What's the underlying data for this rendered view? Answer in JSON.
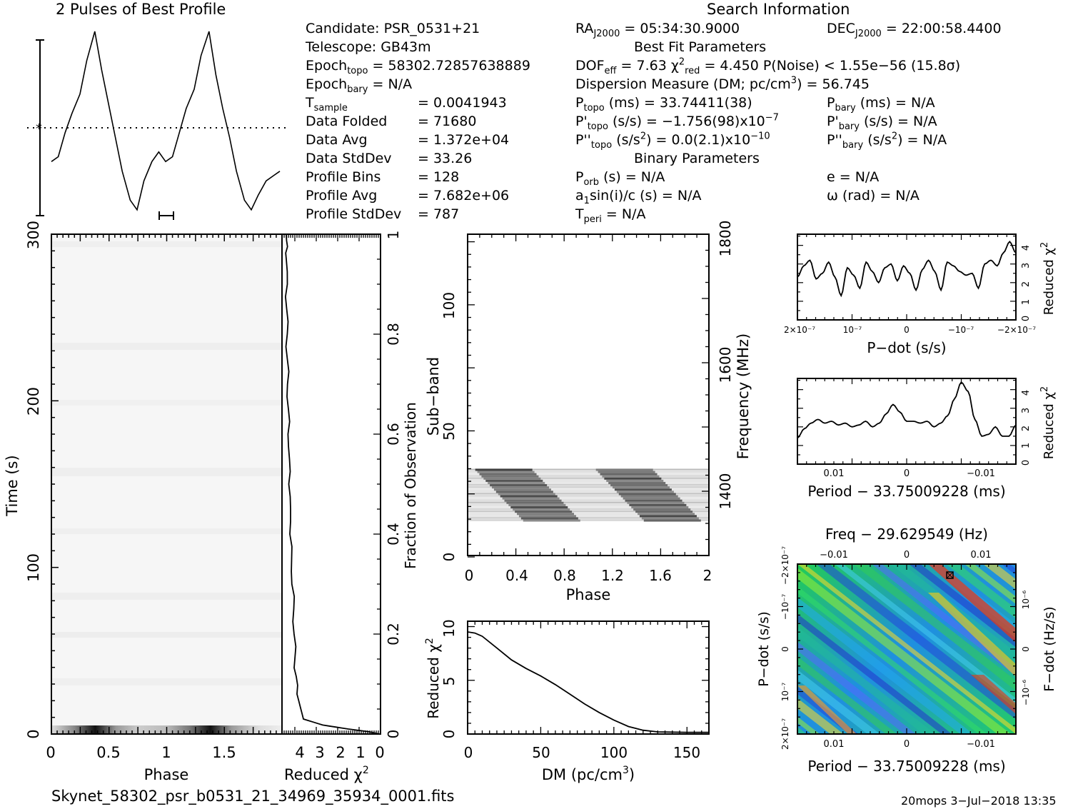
{
  "colors": {
    "ink": "#000000",
    "background": "#ffffff",
    "grey_light": "#f5f5f5",
    "grey_dark": "#222222"
  },
  "header": {
    "profile_title": "2 Pulses of Best Profile",
    "search_title": "Search Information",
    "best_fit_title": "Best Fit Parameters",
    "binary_title": "Binary Parameters"
  },
  "info": {
    "candidate": "Candidate:  PSR_0531+21",
    "telescope": "Telescope:  GB43m",
    "epoch_topo_label": "Epoch",
    "epoch_topo_sub": "topo",
    "epoch_topo_value": " = 58302.72857638889",
    "epoch_bary_label": "Epoch",
    "epoch_bary_sub": "bary",
    "epoch_bary_value": " = N/A",
    "tsample_label": "T",
    "tsample_sub": "sample",
    "tsample_value": "=   0.0041943",
    "data_folded_label": "Data Folded",
    "data_folded_value": "=   71680",
    "data_avg_label": "Data Avg",
    "data_avg_value": "=   1.372e+04",
    "data_std_label": "Data StdDev",
    "data_std_value": "=   33.26",
    "profile_bins_label": "Profile Bins",
    "profile_bins_value": "=   128",
    "profile_avg_label": "Profile Avg",
    "profile_avg_value": "=   7.682e+06",
    "profile_std_label": "Profile StdDev",
    "profile_std_value": "=   787"
  },
  "search": {
    "ra_label": "RA",
    "ra_sub": "J2000",
    "ra_value": " = 05:34:30.9000",
    "dec_label": "DEC",
    "dec_sub": "J2000",
    "dec_value": " = 22:00:58.4400",
    "dof_label": "DOF",
    "dof_sub": "eff",
    "dof_value": " = 7.63  ",
    "chi_sym": "χ",
    "chi_sup": "2",
    "chi_sub": "red",
    "chi_value": " = 4.450   P(Noise) < 1.55e−56   (15.8σ)",
    "dm_text": "Dispersion Measure (DM; pc/cm",
    "dm_sup": "3",
    "dm_value": ") = 56.745",
    "ptopo_label": "P",
    "ptopo_sub": "topo",
    "ptopo_value": " (ms)  =   33.74411(38)",
    "pbary_label": "P",
    "pbary_sub": "bary",
    "pbary_value": " (ms) = N/A",
    "pdtopo_label": "P'",
    "pdtopo_sub": "topo",
    "pdtopo_value": " (s/s) = −1.756(98)x10",
    "pdtopo_exp": "−7",
    "pdbary_label": "P'",
    "pdbary_sub": "bary",
    "pdbary_value": " (s/s) = N/A",
    "pddtopo_label": "P''",
    "pddtopo_sub": "topo",
    "pddtopo_value": " (s/s",
    "pddtopo_sup": "2",
    "pddtopo_value2": ") = 0.0(2.1)x10",
    "pddtopo_exp": "−10",
    "pddbary_label": "P''",
    "pddbary_sub": "bary",
    "pddbary_value": " (s/s",
    "pddbary_sup": "2",
    "pddbary_value2": ") = N/A",
    "porb_label": "P",
    "porb_sub": "orb",
    "porb_value": " (s) = N/A",
    "e_value": "e = N/A",
    "a1_label": "a",
    "a1_sub": "1",
    "a1_value": "sin(i)/c (s) = N/A",
    "omega_value": "ω (rad) = N/A",
    "tperi_label": "T",
    "tperi_sub": "peri",
    "tperi_value": " = N/A"
  },
  "footer": {
    "filename": "Skynet_58302_psr_b0531_21_34969_35934_0001.fits",
    "stamp": "20mops   3−Jul−2018 13:35"
  },
  "axes": {
    "time_ylabel": "Time (s)",
    "phase_xlabel": "Phase",
    "redchi_xlabel": "Reduced χ",
    "redchi_sup": "2",
    "fraction_label": "Fraction of Observation",
    "subband_label": "Sub−band",
    "frequency_label": "Frequency (MHz)",
    "dm_xlabel": "DM (pc/cm",
    "dm_xlabel_sup": "3",
    "dm_xlabel_end": ")",
    "redchi_ylabel": "Reduced χ",
    "redchi_ylabel_sup": "2",
    "pdot_xlabel": "P−dot (s/s)",
    "period_xlabel": "Period − 33.75009228 (ms)",
    "freq_title": "Freq − 29.629549 (Hz)",
    "pdot_ylabel": "P−dot (s/s)",
    "fdot_ylabel": "F−dot (Hz/s)"
  },
  "chart_data": [
    {
      "type": "line",
      "title": "2 Pulses of Best Profile",
      "xlabel": "",
      "ylabel": "",
      "x_phase": [
        0,
        0.06,
        0.12,
        0.18,
        0.25,
        0.31,
        0.38,
        0.44,
        0.5,
        0.56,
        0.62,
        0.69,
        0.75,
        0.81,
        0.88,
        0.94,
        1.0,
        1.06,
        1.12,
        1.18,
        1.25,
        1.31,
        1.38,
        1.44,
        1.5,
        1.56,
        1.62,
        1.69,
        1.75,
        1.81,
        1.88,
        1.94,
        2.0
      ],
      "values": [
        -0.35,
        -0.3,
        -0.05,
        0.15,
        0.35,
        0.7,
        1.0,
        0.6,
        0.25,
        -0.1,
        -0.45,
        -0.75,
        -0.85,
        -0.55,
        -0.35,
        -0.25,
        -0.35,
        -0.3,
        -0.05,
        0.2,
        0.4,
        0.75,
        1.0,
        0.55,
        0.2,
        -0.1,
        -0.45,
        -0.75,
        -0.85,
        -0.7,
        -0.55,
        -0.5,
        -0.45
      ],
      "dotted_baseline": 0.0
    },
    {
      "type": "heatmap",
      "title": "",
      "xlabel": "Phase",
      "ylabel": "Time (s)",
      "x_range": [
        0,
        2
      ],
      "y_range": [
        0,
        300
      ],
      "x_ticks": [
        "0",
        "0.5",
        "1",
        "1.5"
      ],
      "y_ticks": [
        "0",
        "100",
        "200",
        "300"
      ],
      "dark_pulse_phase": [
        0.38,
        1.38
      ]
    },
    {
      "type": "line",
      "title": "",
      "xlabel": "Reduced χ2",
      "ylabel": "Fraction of Observation",
      "x_range": [
        4.6,
        0
      ],
      "y_range": [
        0,
        1
      ],
      "x_ticks": [
        "4",
        "3",
        "2",
        "1",
        "0"
      ],
      "y_ticks": [
        "0",
        "0.2",
        "0.4",
        "0.6",
        "0.8",
        "1"
      ],
      "points": [
        [
          0.05,
          0.0
        ],
        [
          0.6,
          0.005
        ],
        [
          1.5,
          0.01
        ],
        [
          2.7,
          0.018
        ],
        [
          3.6,
          0.03
        ],
        [
          3.9,
          0.08
        ],
        [
          4.0,
          0.15
        ],
        [
          4.05,
          0.25
        ],
        [
          4.15,
          0.35
        ],
        [
          4.2,
          0.45
        ],
        [
          4.25,
          0.55
        ],
        [
          4.3,
          0.65
        ],
        [
          4.35,
          0.75
        ],
        [
          4.38,
          0.85
        ],
        [
          4.4,
          0.95
        ],
        [
          4.4,
          1.0
        ]
      ]
    },
    {
      "type": "heatmap",
      "title": "",
      "xlabel": "Phase",
      "ylabel": "Sub−band",
      "y2label": "Frequency (MHz)",
      "x_range": [
        0,
        2
      ],
      "y_range": [
        0,
        128
      ],
      "x_ticks": [
        "0",
        "0.4",
        "0.8",
        "1.2",
        "1.6",
        "2"
      ],
      "y_ticks": [
        "0",
        "50",
        "100"
      ],
      "y2_ticks": [
        "1400",
        "1600",
        "1800"
      ],
      "filled_subbands": [
        14,
        35
      ]
    },
    {
      "type": "line",
      "title": "",
      "xlabel": "DM (pc/cm3)",
      "ylabel": "Reduced χ2",
      "x_range": [
        0,
        165
      ],
      "y_range": [
        0,
        10
      ],
      "x_ticks": [
        "0",
        "50",
        "100",
        "150"
      ],
      "y_ticks": [
        "0",
        "5",
        "10"
      ],
      "points": [
        [
          0,
          9.5
        ],
        [
          5,
          9.4
        ],
        [
          10,
          9.1
        ],
        [
          20,
          8.0
        ],
        [
          30,
          6.9
        ],
        [
          40,
          6.1
        ],
        [
          50,
          5.4
        ],
        [
          60,
          4.6
        ],
        [
          70,
          3.7
        ],
        [
          80,
          2.8
        ],
        [
          90,
          2.0
        ],
        [
          100,
          1.3
        ],
        [
          110,
          0.7
        ],
        [
          120,
          0.35
        ],
        [
          130,
          0.2
        ],
        [
          150,
          0.15
        ],
        [
          165,
          0.15
        ]
      ]
    },
    {
      "type": "line",
      "title": "",
      "xlabel": "P−dot (s/s)",
      "ylabel": "Reduced χ2",
      "x_ticks": [
        "2×10−7",
        "10−7",
        "0",
        "−10−7",
        "−2×10−7"
      ],
      "y_ticks": [
        "0",
        "1",
        "2",
        "3",
        "4"
      ],
      "y_range": [
        0,
        4.6
      ],
      "values": [
        2.3,
        2.9,
        3.2,
        2.2,
        2.5,
        3.1,
        2.3,
        1.3,
        2.8,
        2.4,
        1.7,
        3.1,
        2.6,
        2.0,
        2.8,
        3.0,
        2.1,
        2.9,
        2.5,
        1.6,
        2.7,
        3.2,
        2.6,
        1.6,
        3.1,
        2.9,
        2.6,
        2.4,
        2.5,
        1.7,
        3.0,
        3.2,
        2.9,
        3.6,
        4.2,
        3.6
      ]
    },
    {
      "type": "line",
      "title": "",
      "xlabel": "Period − 33.75009228 (ms)",
      "ylabel": "Reduced χ2",
      "x_ticks": [
        "0.01",
        "0",
        "−0.01"
      ],
      "y_ticks": [
        "0",
        "1",
        "2",
        "3",
        "4"
      ],
      "y_range": [
        0,
        4.6
      ],
      "values": [
        1.4,
        1.9,
        2.2,
        2.4,
        2.2,
        2.3,
        2.1,
        2.2,
        2.0,
        2.1,
        2.3,
        2.0,
        2.2,
        2.7,
        3.2,
        2.8,
        2.3,
        2.3,
        2.2,
        2.3,
        2.0,
        2.2,
        2.6,
        3.5,
        4.4,
        3.9,
        2.4,
        1.5,
        1.6,
        2.0,
        1.5,
        1.5,
        2.1
      ]
    },
    {
      "type": "heatmap",
      "title": "Freq − 29.629549 (Hz)",
      "xlabel": "Period − 33.75009228 (ms)",
      "ylabel": "P−dot (s/s)",
      "y2label": "F−dot (Hz/s)",
      "x_ticks": [
        "0.01",
        "0",
        "−0.01"
      ],
      "x2_ticks": [
        "−0.01",
        "0",
        "0.01"
      ],
      "y_ticks": [
        "2×10−7",
        "10−7",
        "0",
        "−10−7",
        "−2×10−7"
      ],
      "y2_ticks": [
        "−10−6",
        "0",
        "10−6"
      ]
    }
  ]
}
